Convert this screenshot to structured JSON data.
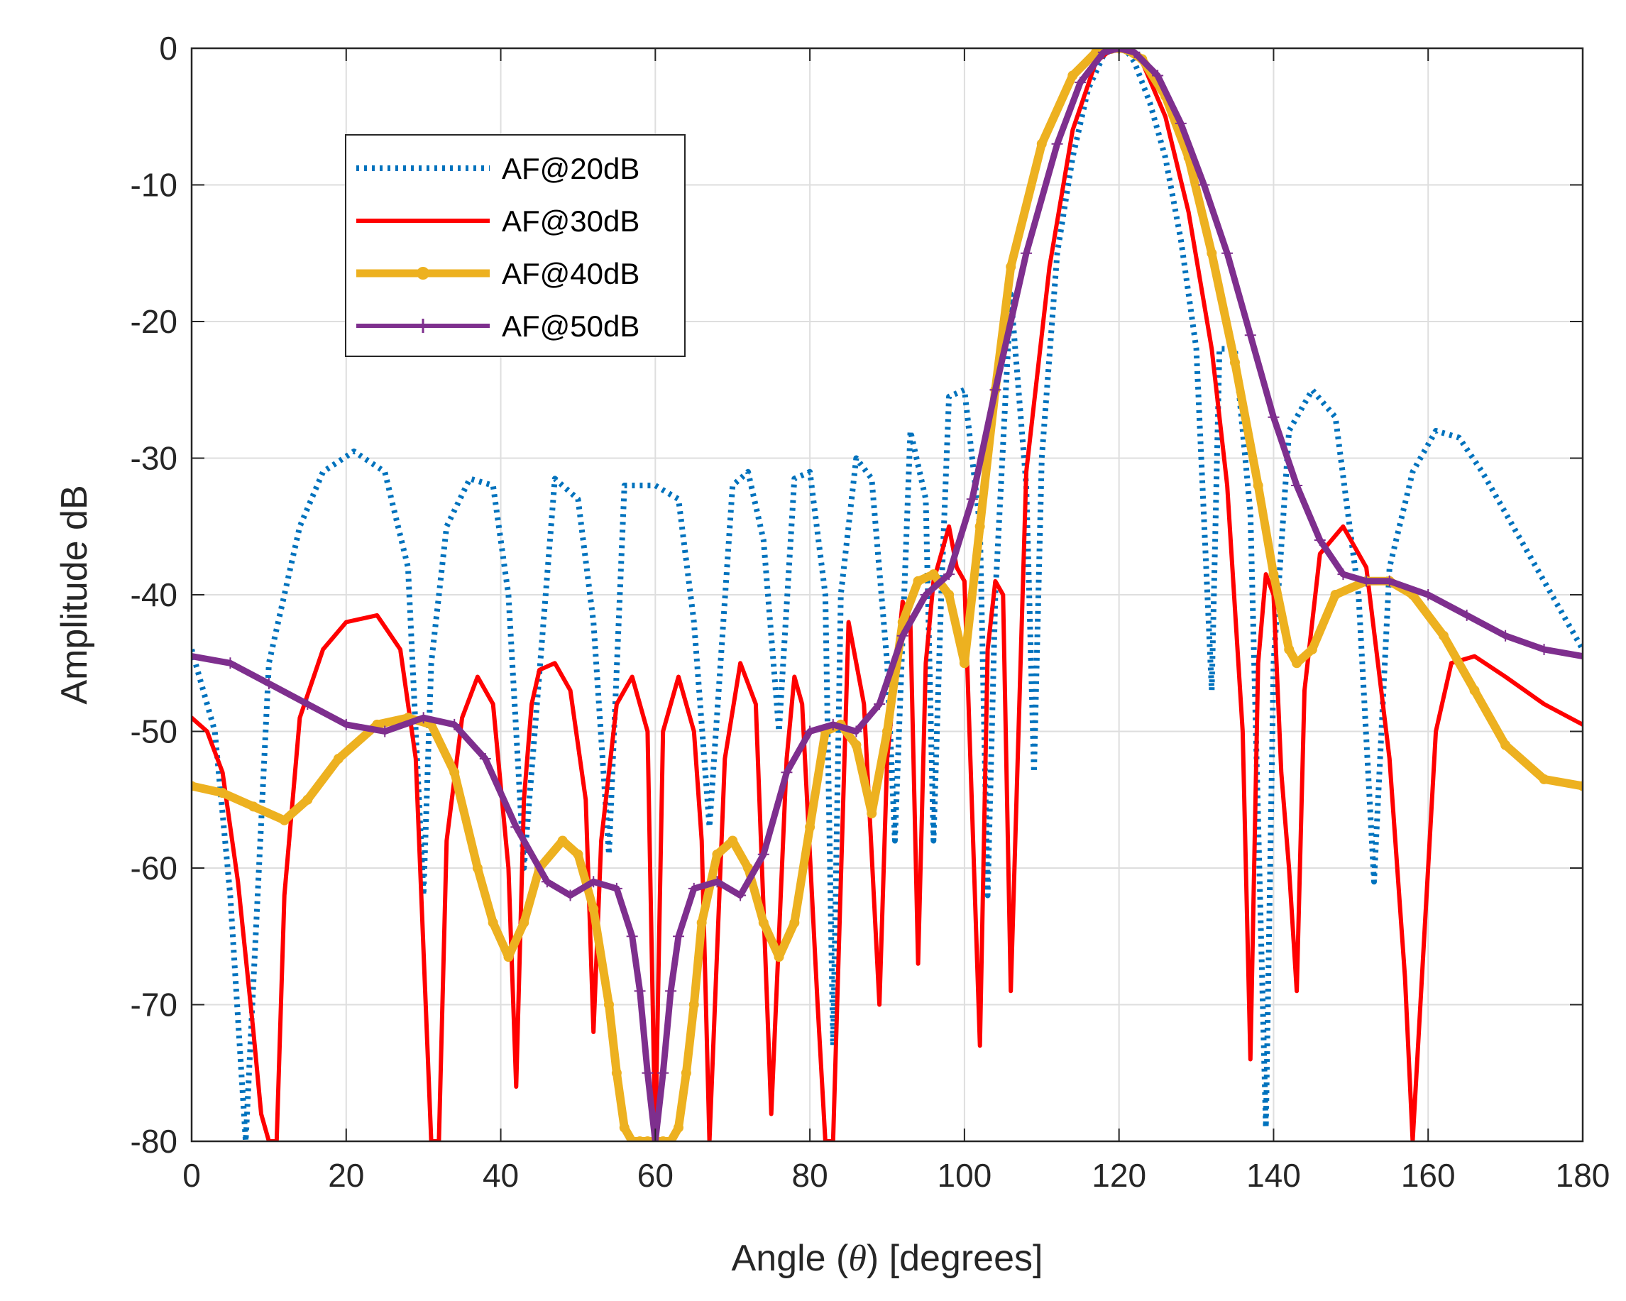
{
  "chart_data": {
    "type": "line",
    "xlabel_prefix": "Angle (",
    "xlabel_symbol": "θ",
    "xlabel_suffix": ") [degrees]",
    "ylabel": "Amplitude dB",
    "xlim": [
      0,
      180
    ],
    "ylim": [
      -80,
      0
    ],
    "xticks": [
      0,
      20,
      40,
      60,
      80,
      100,
      120,
      140,
      160,
      180
    ],
    "yticks": [
      0,
      -10,
      -20,
      -30,
      -40,
      -50,
      -60,
      -70,
      -80
    ],
    "grid": true,
    "legend_position": "top-left",
    "series": [
      {
        "name": "AF@20dB",
        "color": "#0072BD",
        "style": "dotted",
        "x": [
          0,
          3,
          5,
          7,
          10,
          14,
          17,
          21,
          25,
          28,
          30,
          31,
          33,
          36,
          39,
          41,
          43,
          47,
          50,
          52,
          54,
          56,
          60,
          63,
          65,
          67,
          70,
          72,
          74,
          76,
          78,
          80,
          82,
          83,
          84,
          86,
          88,
          90,
          91,
          93,
          95,
          96,
          97,
          98,
          100,
          102,
          103,
          104,
          106,
          108,
          109,
          110,
          112,
          114,
          116,
          118,
          119,
          120,
          121,
          122,
          124,
          126,
          128,
          130,
          132,
          133,
          135,
          137,
          139,
          140,
          142,
          145,
          148,
          151,
          153,
          155,
          158,
          161,
          164,
          167,
          170,
          173,
          176,
          178,
          180
        ],
        "y": [
          -44,
          -50,
          -62,
          -80,
          -45,
          -35,
          -31,
          -29.5,
          -31,
          -38,
          -62,
          -45,
          -35,
          -31.5,
          -32,
          -40,
          -60,
          -31.5,
          -33,
          -42,
          -59,
          -32,
          -32,
          -33,
          -42,
          -57,
          -32,
          -31,
          -36,
          -50,
          -31.5,
          -31,
          -40,
          -73,
          -40,
          -30,
          -31.5,
          -45,
          -58,
          -28,
          -33,
          -58,
          -40,
          -25.5,
          -25,
          -35,
          -62,
          -40,
          -18,
          -32,
          -53,
          -30,
          -15,
          -8,
          -3,
          -0.5,
          -0.1,
          0,
          -0.2,
          -1,
          -4,
          -8,
          -14,
          -22,
          -47,
          -22,
          -22,
          -34,
          -79,
          -45,
          -28,
          -25,
          -27,
          -40,
          -61,
          -38,
          -31,
          -28,
          -28.5,
          -31,
          -34,
          -37,
          -40,
          -42,
          -44
        ]
      },
      {
        "name": "AF@30dB",
        "color": "#FF0000",
        "style": "solid",
        "x": [
          0,
          2,
          4,
          6,
          8,
          9,
          10,
          11,
          12,
          14,
          17,
          20,
          24,
          27,
          29,
          31,
          32,
          33,
          35,
          37,
          39,
          41,
          42,
          43,
          44,
          45,
          47,
          49,
          51,
          52,
          53,
          55,
          57,
          59,
          60,
          61,
          63,
          65,
          66,
          67,
          69,
          71,
          73,
          75,
          77,
          78,
          79,
          81,
          82,
          83,
          85,
          87,
          89,
          90,
          92,
          93,
          94,
          95,
          96,
          98,
          99,
          100,
          101,
          102,
          103,
          104,
          105,
          106,
          108,
          111,
          114,
          117,
          119,
          120,
          121,
          123,
          126,
          129,
          132,
          134,
          136,
          137,
          138,
          139,
          140,
          141,
          142,
          143,
          144,
          146,
          149,
          152,
          155,
          157,
          158,
          159,
          161,
          163,
          166,
          170,
          175,
          180
        ],
        "y": [
          -49,
          -50,
          -53,
          -61,
          -72,
          -78,
          -80,
          -80,
          -62,
          -49,
          -44,
          -42,
          -41.5,
          -44,
          -52,
          -80,
          -80,
          -58,
          -49,
          -46,
          -48,
          -60,
          -76,
          -55,
          -48,
          -45.5,
          -45,
          -47,
          -55,
          -72,
          -58,
          -48,
          -46,
          -50,
          -80,
          -50,
          -46,
          -50,
          -58,
          -80,
          -52,
          -45,
          -48,
          -78,
          -52,
          -46,
          -48,
          -70,
          -80,
          -80,
          -42,
          -48,
          -70,
          -52,
          -40.5,
          -42,
          -67,
          -45,
          -39,
          -35,
          -38,
          -39,
          -56,
          -73,
          -44,
          -39,
          -40,
          -69,
          -31,
          -16,
          -6,
          -1,
          -0.1,
          0,
          -0.2,
          -1,
          -5,
          -12,
          -22,
          -32,
          -50,
          -74,
          -45,
          -38.5,
          -40,
          -53,
          -60,
          -69,
          -47,
          -37,
          -35,
          -38,
          -52,
          -68,
          -80,
          -70,
          -50,
          -45,
          -44.5,
          -46,
          -48,
          -49.5
        ]
      },
      {
        "name": "AF@40dB",
        "color": "#EDB120",
        "style": "solid-dotted",
        "x": [
          0,
          4,
          8,
          12,
          15,
          19,
          24,
          28,
          31,
          34,
          37,
          39,
          41,
          43,
          45,
          48,
          50,
          52,
          54,
          55,
          56,
          57,
          58,
          59,
          60,
          61,
          62,
          63,
          64,
          65,
          66,
          68,
          70,
          72,
          74,
          76,
          78,
          80,
          82,
          84,
          86,
          88,
          90,
          92,
          94,
          96,
          98,
          100,
          102,
          104,
          106,
          110,
          114,
          117,
          119,
          120,
          121,
          123,
          126,
          129,
          132,
          135,
          138,
          140,
          142,
          143,
          145,
          148,
          152,
          155,
          158,
          162,
          166,
          170,
          175,
          180
        ],
        "y": [
          -54,
          -54.5,
          -55.5,
          -56.5,
          -55,
          -52,
          -49.5,
          -49,
          -49.5,
          -53,
          -60,
          -64,
          -66.5,
          -64,
          -60,
          -58,
          -59,
          -63,
          -70,
          -75,
          -79,
          -80,
          -80,
          -80,
          -80,
          -80,
          -80,
          -79,
          -75,
          -70,
          -64,
          -59,
          -58,
          -60,
          -64,
          -66.5,
          -64,
          -57,
          -50,
          -49.5,
          -51,
          -56,
          -50,
          -42,
          -39,
          -38.5,
          -40,
          -45,
          -35,
          -25,
          -16,
          -7,
          -2,
          -0.3,
          -0.05,
          0,
          -0.1,
          -0.8,
          -3.5,
          -8,
          -15,
          -23,
          -32,
          -38.5,
          -44,
          -45,
          -44,
          -40,
          -39,
          -39,
          -40,
          -43,
          -47,
          -51,
          -53.5,
          -54
        ]
      },
      {
        "name": "AF@50dB",
        "color": "#7E2F8E",
        "style": "solid-plus",
        "x": [
          0,
          5,
          10,
          15,
          20,
          25,
          30,
          34,
          38,
          42,
          46,
          49,
          52,
          55,
          57,
          58,
          59,
          60,
          61,
          62,
          63,
          65,
          68,
          71,
          74,
          77,
          80,
          83,
          86,
          89,
          92,
          95,
          98,
          101,
          104,
          108,
          112,
          115,
          118,
          120,
          122,
          125,
          128,
          131,
          134,
          137,
          140,
          143,
          146,
          149,
          152,
          155,
          160,
          165,
          170,
          175,
          180
        ],
        "y": [
          -44.5,
          -45,
          -46.5,
          -48,
          -49.5,
          -50,
          -49,
          -49.5,
          -52,
          -57,
          -61,
          -62,
          -61,
          -61.5,
          -65,
          -69,
          -75,
          -80,
          -75,
          -69,
          -65,
          -61.5,
          -61,
          -62,
          -59,
          -53,
          -50,
          -49.5,
          -50,
          -48,
          -43,
          -40,
          -38.5,
          -33,
          -25,
          -15,
          -7,
          -2.5,
          -0.3,
          0,
          -0.3,
          -2,
          -5.5,
          -10,
          -15,
          -21,
          -27,
          -32,
          -36,
          -38.5,
          -39,
          -39,
          -40,
          -41.5,
          -43,
          -44,
          -44.5
        ]
      }
    ]
  }
}
